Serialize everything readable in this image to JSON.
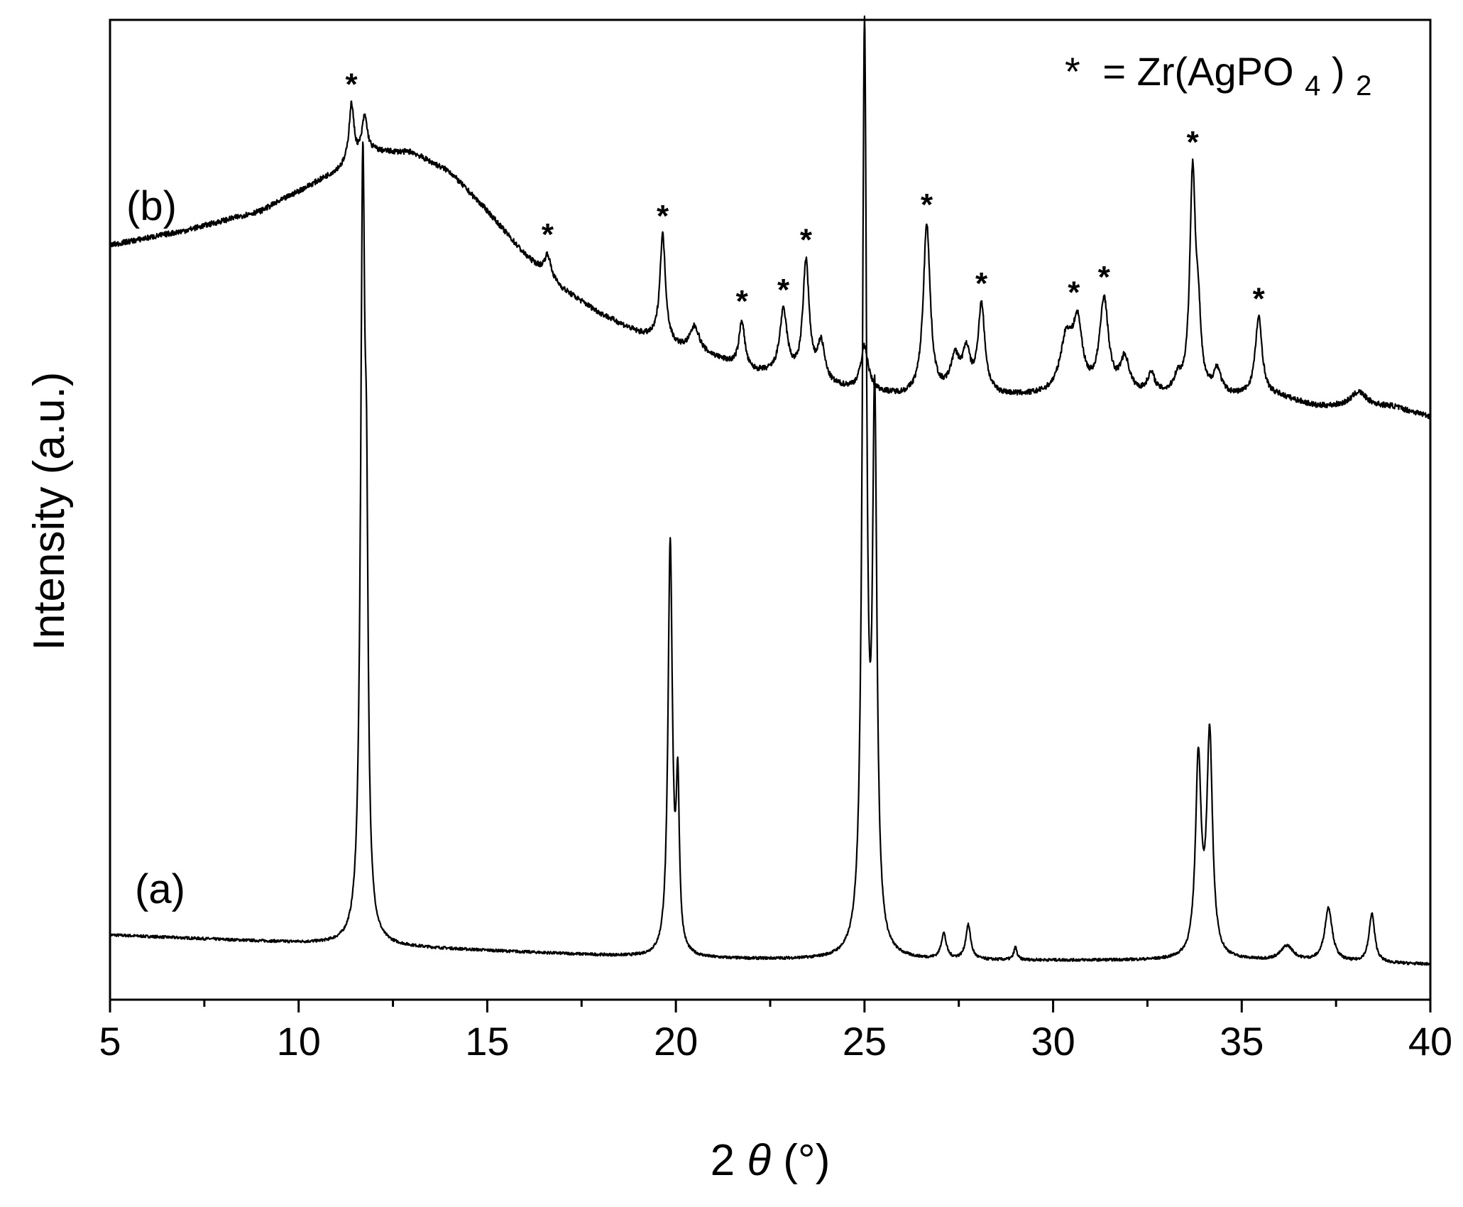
{
  "chart_data": {
    "type": "line",
    "title": "",
    "xlabel": "2θ (°)",
    "xlabel_parts": {
      "prefix": "2",
      "symbol": "θ",
      "suffix": " (°)"
    },
    "ylabel": "Intensity (a.u.)",
    "xlim": [
      5,
      40
    ],
    "ylim": [
      0,
      100
    ],
    "x_ticks": [
      5,
      10,
      15,
      20,
      25,
      30,
      35,
      40
    ],
    "x_tick_labels": [
      "5",
      "10",
      "15",
      "20",
      "25",
      "30",
      "35",
      "40"
    ],
    "x_minor_step": 2.5,
    "y_ticks_shown": false,
    "grid": false,
    "legend": {
      "placement": "top-right",
      "marker": "*",
      "text": "= Zr(AgPO",
      "sub1": "4",
      "close": ")",
      "sub2": "2"
    },
    "series": [
      {
        "name": "(a)",
        "color": "#000000",
        "baseline": {
          "x": [
            5,
            10,
            15,
            20,
            25,
            30,
            35,
            40
          ],
          "y": [
            6.6,
            5.8,
            5.0,
            4.2,
            4.0,
            4.0,
            4.0,
            3.6
          ]
        },
        "peaks": [
          {
            "x": 11.7,
            "h": 76,
            "w": 0.07
          },
          {
            "x": 11.8,
            "h": 30,
            "w": 0.05
          },
          {
            "x": 19.85,
            "h": 42,
            "w": 0.07
          },
          {
            "x": 20.05,
            "h": 16,
            "w": 0.05
          },
          {
            "x": 25.0,
            "h": 93,
            "w": 0.07
          },
          {
            "x": 25.27,
            "h": 54,
            "w": 0.07
          },
          {
            "x": 27.1,
            "h": 2.6,
            "w": 0.08
          },
          {
            "x": 27.75,
            "h": 3.5,
            "w": 0.08
          },
          {
            "x": 29.0,
            "h": 1.3,
            "w": 0.05
          },
          {
            "x": 33.85,
            "h": 20,
            "w": 0.09
          },
          {
            "x": 34.15,
            "h": 22.5,
            "w": 0.09
          },
          {
            "x": 36.2,
            "h": 1.5,
            "w": 0.2
          },
          {
            "x": 37.3,
            "h": 5.5,
            "w": 0.12
          },
          {
            "x": 38.45,
            "h": 5.0,
            "w": 0.09
          }
        ]
      },
      {
        "name": "(b)",
        "color": "#000000",
        "baseline": {
          "x": [
            5,
            7,
            9,
            10.5,
            12,
            13,
            14,
            15,
            16,
            17,
            18,
            19,
            20,
            21,
            22,
            23,
            24,
            25,
            26,
            27,
            28,
            29,
            30,
            31,
            32,
            33,
            34,
            35,
            36,
            37,
            38,
            39,
            40
          ],
          "y": [
            77,
            78.5,
            80.5,
            83.5,
            86.5,
            86.5,
            84.5,
            80.5,
            76,
            72.5,
            70,
            68,
            66.5,
            65.5,
            64,
            63.5,
            62.5,
            62,
            61.5,
            61.5,
            61.5,
            61.5,
            61.5,
            61.5,
            61.5,
            61.5,
            61.5,
            61.5,
            61.5,
            60.5,
            60.5,
            60.5,
            59.5
          ]
        },
        "peaks": [
          {
            "x": 11.4,
            "h": 6.0,
            "w": 0.08
          },
          {
            "x": 11.75,
            "h": 4.0,
            "w": 0.09
          },
          {
            "x": 16.6,
            "h": 2.2,
            "w": 0.1
          },
          {
            "x": 19.65,
            "h": 11.0,
            "w": 0.09
          },
          {
            "x": 20.5,
            "h": 2.6,
            "w": 0.15
          },
          {
            "x": 21.75,
            "h": 4.8,
            "w": 0.09
          },
          {
            "x": 22.85,
            "h": 6.5,
            "w": 0.12
          },
          {
            "x": 23.45,
            "h": 12.0,
            "w": 0.1
          },
          {
            "x": 23.85,
            "h": 4.0,
            "w": 0.12
          },
          {
            "x": 25.0,
            "h": 4.5,
            "w": 0.12
          },
          {
            "x": 26.65,
            "h": 17.5,
            "w": 0.11
          },
          {
            "x": 27.4,
            "h": 3.5,
            "w": 0.15
          },
          {
            "x": 27.7,
            "h": 4.0,
            "w": 0.12
          },
          {
            "x": 28.1,
            "h": 9.0,
            "w": 0.11
          },
          {
            "x": 30.35,
            "h": 5.5,
            "w": 0.2
          },
          {
            "x": 30.65,
            "h": 6.5,
            "w": 0.15
          },
          {
            "x": 31.35,
            "h": 9.5,
            "w": 0.14
          },
          {
            "x": 31.9,
            "h": 3.5,
            "w": 0.15
          },
          {
            "x": 32.6,
            "h": 2.0,
            "w": 0.12
          },
          {
            "x": 33.3,
            "h": 1.5,
            "w": 0.12
          },
          {
            "x": 33.7,
            "h": 22.5,
            "w": 0.09
          },
          {
            "x": 33.85,
            "h": 6.0,
            "w": 0.08
          },
          {
            "x": 34.35,
            "h": 2.5,
            "w": 0.12
          },
          {
            "x": 35.45,
            "h": 8.0,
            "w": 0.11
          },
          {
            "x": 38.1,
            "h": 1.5,
            "w": 0.25
          }
        ]
      }
    ],
    "annotations": {
      "star_symbol": "*",
      "star_x": [
        11.4,
        16.6,
        19.65,
        21.75,
        22.85,
        23.45,
        26.65,
        28.1,
        30.55,
        31.35,
        33.7,
        35.45
      ]
    }
  }
}
